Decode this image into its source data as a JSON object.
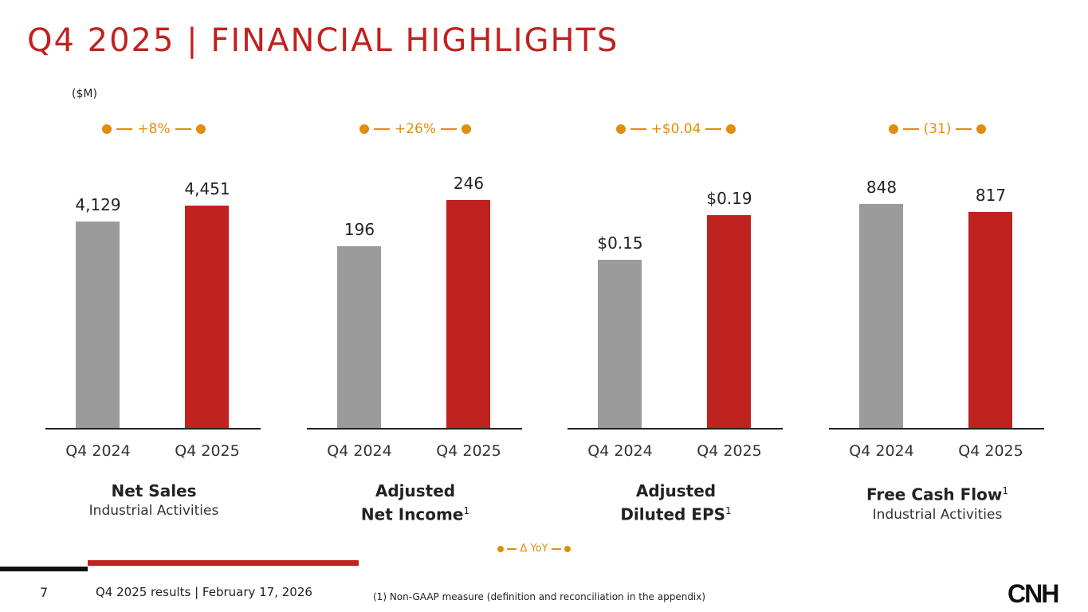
{
  "title": "Q4 2025 | FINANCIAL HIGHLIGHTS",
  "unit": "($M)",
  "legend": "Δ YoY",
  "footer": {
    "page": "7",
    "text": "Q4 2025 results | February 17, 2026",
    "note": "(1) Non-GAAP measure (definition and reconciliation in the appendix)",
    "logo": "CNH"
  },
  "colors": {
    "prior": "#9b9b9b",
    "current": "#c0221f",
    "accent": "#e08e0b"
  },
  "chart_data": [
    {
      "type": "bar",
      "title": "Net Sales",
      "sup": "",
      "subtitle": "Industrial Activities",
      "categories": [
        "Q4 2024",
        "Q4 2025"
      ],
      "values": [
        4129,
        4451
      ],
      "labels": [
        "4,129",
        "4,451"
      ],
      "delta": "+8%",
      "ylim": [
        0,
        4786
      ]
    },
    {
      "type": "bar",
      "title": "Adjusted Net Income",
      "sup": "1",
      "subtitle": "",
      "categories": [
        "Q4 2024",
        "Q4 2025"
      ],
      "values": [
        196,
        246
      ],
      "labels": [
        "196",
        "246"
      ],
      "delta": "+26%",
      "ylim": [
        0,
        258
      ]
    },
    {
      "type": "bar",
      "title": "Adjusted Diluted EPS",
      "sup": "1",
      "subtitle": "",
      "categories": [
        "Q4 2024",
        "Q4 2025"
      ],
      "values": [
        0.15,
        0.19
      ],
      "labels": [
        "$0.15",
        "$0.19"
      ],
      "delta": "+$0.04",
      "ylim": [
        0,
        0.2135
      ]
    },
    {
      "type": "bar",
      "title": "Free Cash Flow",
      "sup": "1",
      "subtitle": "Industrial Activities",
      "categories": [
        "Q4 2024",
        "Q4 2025"
      ],
      "values": [
        848,
        817
      ],
      "labels": [
        "848",
        "817"
      ],
      "delta": "(31)",
      "ylim": [
        0,
        905
      ]
    }
  ]
}
